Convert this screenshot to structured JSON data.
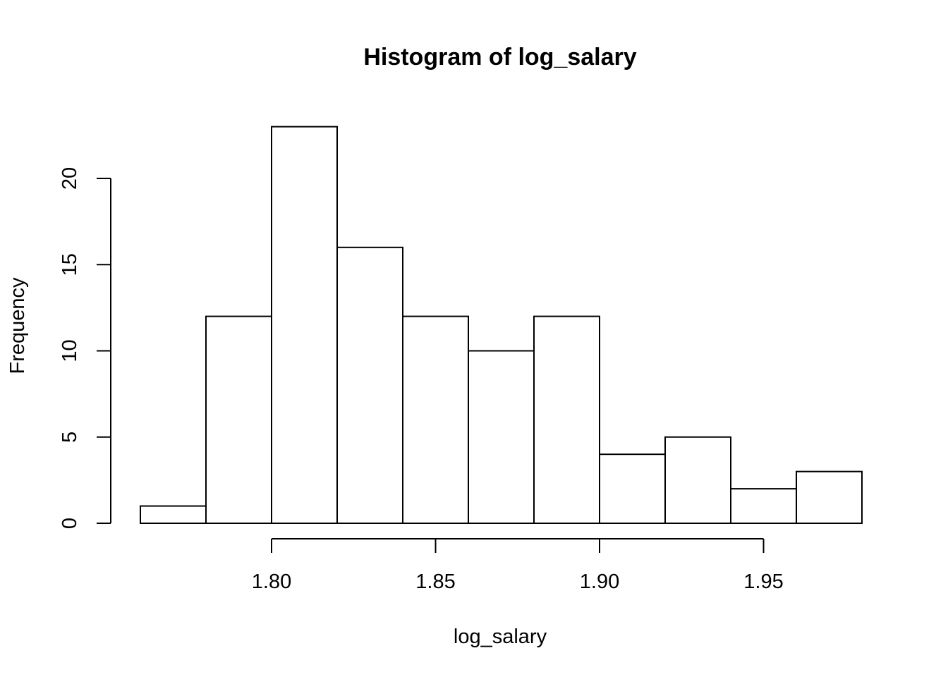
{
  "chart_data": {
    "type": "bar",
    "title": "Histogram of log_salary",
    "xlabel": "log_salary",
    "ylabel": "Frequency",
    "bins": [
      {
        "start": 1.76,
        "end": 1.78,
        "count": 1
      },
      {
        "start": 1.78,
        "end": 1.8,
        "count": 12
      },
      {
        "start": 1.8,
        "end": 1.82,
        "count": 23
      },
      {
        "start": 1.82,
        "end": 1.84,
        "count": 16
      },
      {
        "start": 1.84,
        "end": 1.86,
        "count": 12
      },
      {
        "start": 1.86,
        "end": 1.88,
        "count": 10
      },
      {
        "start": 1.88,
        "end": 1.9,
        "count": 12
      },
      {
        "start": 1.9,
        "end": 1.92,
        "count": 4
      },
      {
        "start": 1.92,
        "end": 1.94,
        "count": 5
      },
      {
        "start": 1.94,
        "end": 1.96,
        "count": 2
      },
      {
        "start": 1.96,
        "end": 1.98,
        "count": 3
      }
    ],
    "xticks": [
      "1.80",
      "1.85",
      "1.90",
      "1.95"
    ],
    "yticks": [
      "0",
      "5",
      "10",
      "15",
      "20"
    ],
    "xlim": [
      1.76,
      1.98
    ],
    "ylim": [
      0,
      23
    ],
    "grid": false,
    "colors": {
      "bar_fill": "#ffffff",
      "bar_stroke": "#000000"
    }
  }
}
